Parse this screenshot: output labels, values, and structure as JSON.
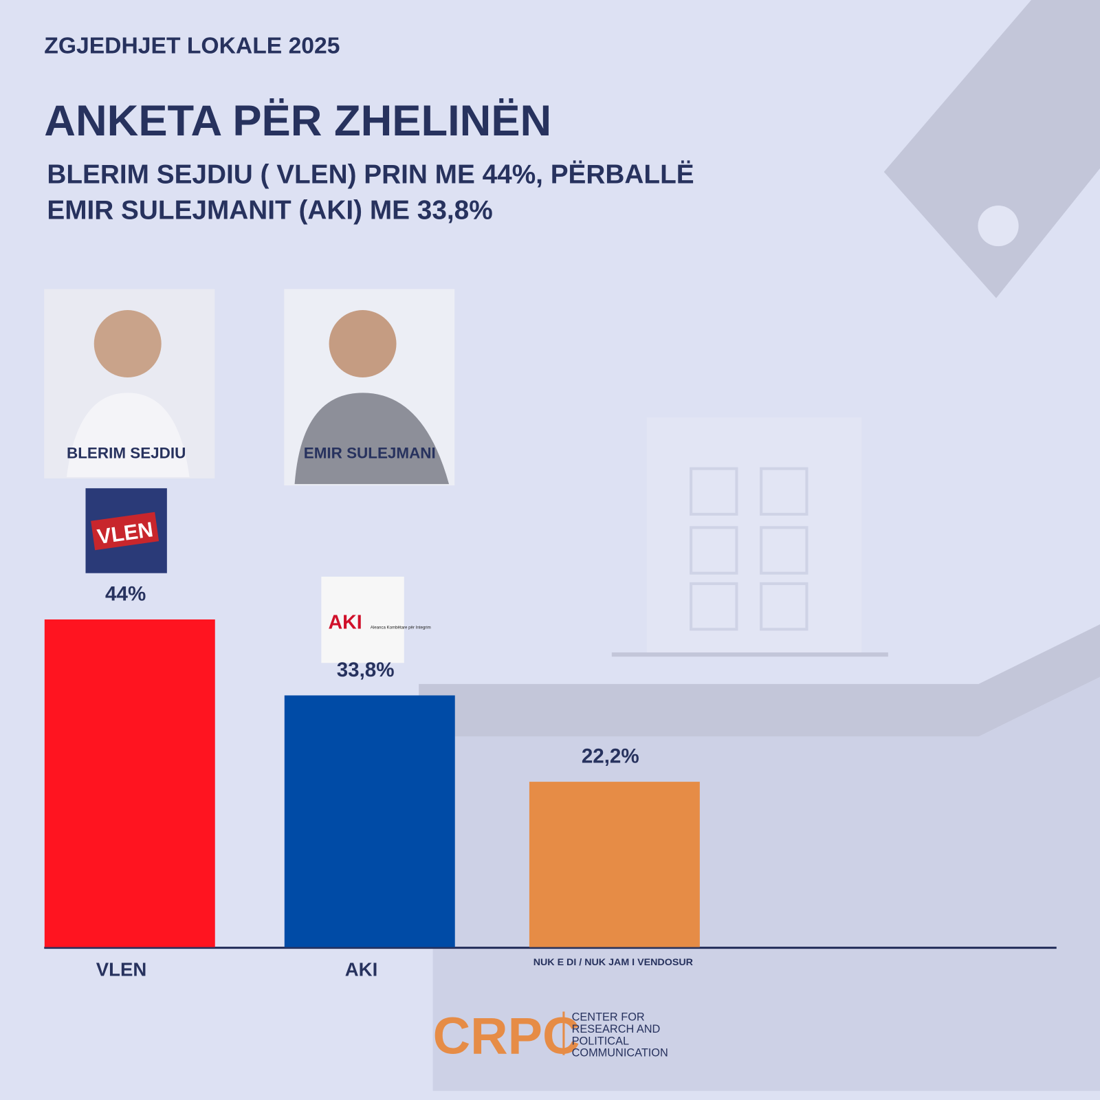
{
  "chart_data": {
    "type": "bar",
    "supertitle": "ZGJEDHJET LOKALE 2025",
    "title": "ANKETA PËR ZHELINËN",
    "subtitle": [
      "BLERIM SEJDIU ( VLEN) PRIN ME 44%, PËRBALLË",
      "EMIR SULEJMANIT (AKI) ME 33,8%"
    ],
    "candidates": [
      "BLERIM SEJDIU",
      "EMIR SULEJMANI"
    ],
    "logos": [
      "VLEN",
      "AKI",
      "Aleanca Kombëtare për Integrim"
    ],
    "categories": [
      "VLEN",
      "AKI",
      "NUK E DI / NUK JAM I VENDOSUR"
    ],
    "values": [
      44,
      33.8,
      22.2
    ],
    "value_labels": [
      "44%",
      "33,8%",
      "22,2%"
    ],
    "colors": [
      "#ff1420",
      "#004ba6",
      "#e68c46"
    ],
    "source": {
      "logo": "CRPC",
      "name": [
        "CENTER FOR",
        "RESEARCH AND",
        "POLITICAL",
        "COMMUNICATION"
      ]
    }
  }
}
